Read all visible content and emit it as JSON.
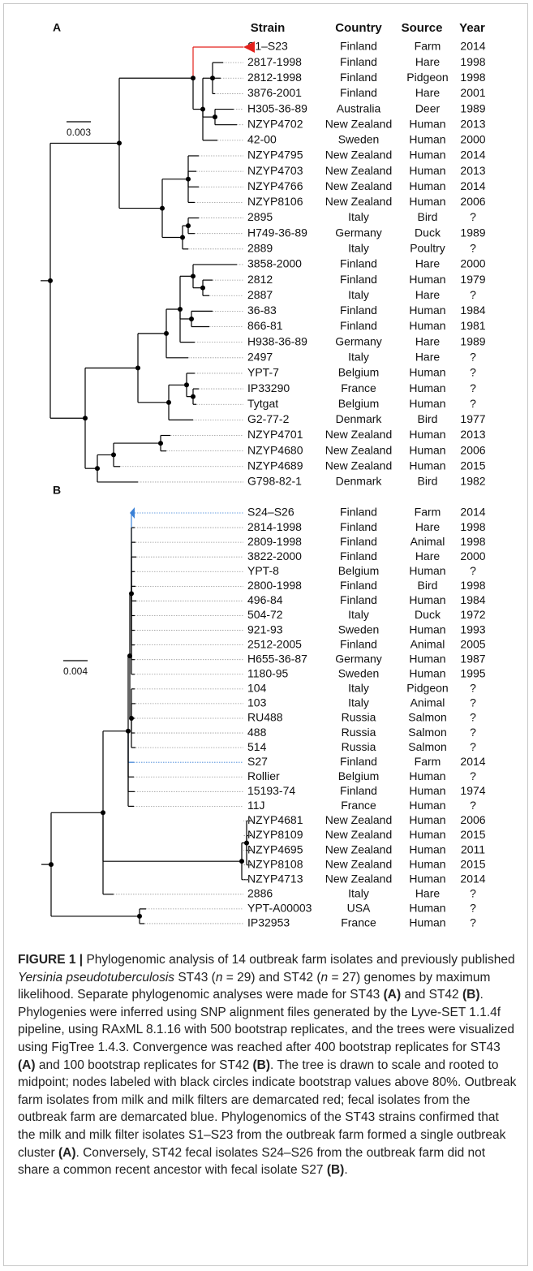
{
  "panels": [
    {
      "label": "A",
      "scale": "0.003",
      "headers": [
        "Strain",
        "Country",
        "Source",
        "Year"
      ],
      "rows": [
        {
          "strain": "S1–S23",
          "country": "Finland",
          "source": "Farm",
          "year": "2014",
          "color": "#e3211c"
        },
        {
          "strain": "2817-1998",
          "country": "Finland",
          "source": "Hare",
          "year": "1998"
        },
        {
          "strain": "2812-1998",
          "country": "Finland",
          "source": "Pidgeon",
          "year": "1998"
        },
        {
          "strain": "3876-2001",
          "country": "Finland",
          "source": "Hare",
          "year": "2001"
        },
        {
          "strain": "H305-36-89",
          "country": "Australia",
          "source": "Deer",
          "year": "1989"
        },
        {
          "strain": "NZYP4702",
          "country": "New Zealand",
          "source": "Human",
          "year": "2013"
        },
        {
          "strain": "42-00",
          "country": "Sweden",
          "source": "Human",
          "year": "2000"
        },
        {
          "strain": "NZYP4795",
          "country": "New Zealand",
          "source": "Human",
          "year": "2014"
        },
        {
          "strain": "NZYP4703",
          "country": "New Zealand",
          "source": "Human",
          "year": "2013"
        },
        {
          "strain": "NZYP4766",
          "country": "New Zealand",
          "source": "Human",
          "year": "2014"
        },
        {
          "strain": "NZYP8106",
          "country": "New Zealand",
          "source": "Human",
          "year": "2006"
        },
        {
          "strain": "2895",
          "country": "Italy",
          "source": "Bird",
          "year": "?"
        },
        {
          "strain": "H749-36-89",
          "country": "Germany",
          "source": "Duck",
          "year": "1989"
        },
        {
          "strain": "2889",
          "country": "Italy",
          "source": "Poultry",
          "year": "?"
        },
        {
          "strain": "3858-2000",
          "country": "Finland",
          "source": "Hare",
          "year": "2000"
        },
        {
          "strain": "2812",
          "country": "Finland",
          "source": "Human",
          "year": "1979"
        },
        {
          "strain": "2887",
          "country": "Italy",
          "source": "Hare",
          "year": "?"
        },
        {
          "strain": "36-83",
          "country": "Finland",
          "source": "Human",
          "year": "1984"
        },
        {
          "strain": "866-81",
          "country": "Finland",
          "source": "Human",
          "year": "1981"
        },
        {
          "strain": "H938-36-89",
          "country": "Germany",
          "source": "Hare",
          "year": "1989"
        },
        {
          "strain": "2497",
          "country": "Italy",
          "source": "Hare",
          "year": "?"
        },
        {
          "strain": "YPT-7",
          "country": "Belgium",
          "source": "Human",
          "year": "?"
        },
        {
          "strain": "IP33290",
          "country": "France",
          "source": "Human",
          "year": "?"
        },
        {
          "strain": "Tytgat",
          "country": "Belgium",
          "source": "Human",
          "year": "?"
        },
        {
          "strain": "G2-77-2",
          "country": "Denmark",
          "source": "Bird",
          "year": "1977"
        },
        {
          "strain": "NZYP4701",
          "country": "New Zealand",
          "source": "Human",
          "year": "2013"
        },
        {
          "strain": "NZYP4680",
          "country": "New Zealand",
          "source": "Human",
          "year": "2006"
        },
        {
          "strain": "NZYP4689",
          "country": "New Zealand",
          "source": "Human",
          "year": "2015"
        },
        {
          "strain": "G798-82-1",
          "country": "Denmark",
          "source": "Bird",
          "year": "1982"
        }
      ]
    },
    {
      "label": "B",
      "scale": "0.004",
      "rows": [
        {
          "strain": "S24–S26",
          "country": "Finland",
          "source": "Farm",
          "year": "2014",
          "color": "#3a80d6"
        },
        {
          "strain": "2814-1998",
          "country": "Finland",
          "source": "Hare",
          "year": "1998"
        },
        {
          "strain": "2809-1998",
          "country": "Finland",
          "source": "Animal",
          "year": "1998"
        },
        {
          "strain": "3822-2000",
          "country": "Finland",
          "source": "Hare",
          "year": "2000"
        },
        {
          "strain": "YPT-8",
          "country": "Belgium",
          "source": "Human",
          "year": "?"
        },
        {
          "strain": "2800-1998",
          "country": "Finland",
          "source": "Bird",
          "year": "1998"
        },
        {
          "strain": "496-84",
          "country": "Finland",
          "source": "Human",
          "year": "1984"
        },
        {
          "strain": "504-72",
          "country": "Italy",
          "source": "Duck",
          "year": "1972"
        },
        {
          "strain": "921-93",
          "country": "Sweden",
          "source": "Human",
          "year": "1993"
        },
        {
          "strain": "2512-2005",
          "country": "Finland",
          "source": "Animal",
          "year": "2005"
        },
        {
          "strain": "H655-36-87",
          "country": "Germany",
          "source": "Human",
          "year": "1987"
        },
        {
          "strain": "1180-95",
          "country": "Sweden",
          "source": "Human",
          "year": "1995"
        },
        {
          "strain": "104",
          "country": "Italy",
          "source": "Pidgeon",
          "year": "?"
        },
        {
          "strain": "103",
          "country": "Italy",
          "source": "Animal",
          "year": "?"
        },
        {
          "strain": "RU488",
          "country": "Russia",
          "source": "Salmon",
          "year": "?"
        },
        {
          "strain": "488",
          "country": "Russia",
          "source": "Salmon",
          "year": "?"
        },
        {
          "strain": "514",
          "country": "Russia",
          "source": "Salmon",
          "year": "?"
        },
        {
          "strain": "S27",
          "country": "Finland",
          "source": "Farm",
          "year": "2014",
          "color": "#3a80d6"
        },
        {
          "strain": "Rollier",
          "country": "Belgium",
          "source": "Human",
          "year": "?"
        },
        {
          "strain": "15193-74",
          "country": "Finland",
          "source": "Human",
          "year": "1974"
        },
        {
          "strain": "11J",
          "country": "France",
          "source": "Human",
          "year": "?"
        },
        {
          "strain": "NZYP4681",
          "country": "New Zealand",
          "source": "Human",
          "year": "2006"
        },
        {
          "strain": "NZYP8109",
          "country": "New Zealand",
          "source": "Human",
          "year": "2015"
        },
        {
          "strain": "NZYP4695",
          "country": "New Zealand",
          "source": "Human",
          "year": "2011"
        },
        {
          "strain": "NZYP8108",
          "country": "New Zealand",
          "source": "Human",
          "year": "2015"
        },
        {
          "strain": "NZYP4713",
          "country": "New Zealand",
          "source": "Human",
          "year": "2014"
        },
        {
          "strain": "2886",
          "country": "Italy",
          "source": "Hare",
          "year": "?"
        },
        {
          "strain": "YPT-A00003",
          "country": "USA",
          "source": "Human",
          "year": "?"
        },
        {
          "strain": "IP32953",
          "country": "France",
          "source": "Human",
          "year": "?"
        }
      ]
    }
  ],
  "caption": [
    {
      "text": "FIGURE 1 |",
      "style": "bold"
    },
    {
      "text": " Phylogenomic analysis of 14 outbreak farm isolates and previously published "
    },
    {
      "text": "Yersinia pseudotuberculosis",
      "style": "italic"
    },
    {
      "text": " ST43 ("
    },
    {
      "text": "n",
      "style": "italic"
    },
    {
      "text": " = 29) and ST42 ("
    },
    {
      "text": "n",
      "style": "italic"
    },
    {
      "text": " = 27) genomes by maximum likelihood. Separate phylogenomic analyses were made for ST43 "
    },
    {
      "text": "(A)",
      "style": "bold"
    },
    {
      "text": " and ST42 "
    },
    {
      "text": "(B)",
      "style": "bold"
    },
    {
      "text": ". Phylogenies were inferred using SNP alignment files generated by the Lyve-SET 1.1.4f pipeline, using RAxML 8.1.16 with 500 bootstrap replicates, and the trees were visualized using FigTree 1.4.3. Convergence was reached after 400 bootstrap replicates for ST43 "
    },
    {
      "text": "(A)",
      "style": "bold"
    },
    {
      "text": " and 100 bootstrap replicates for ST42 "
    },
    {
      "text": "(B)",
      "style": "bold"
    },
    {
      "text": ". The tree is drawn to scale and rooted to midpoint; nodes labeled with black circles indicate bootstrap values above 80%. Outbreak farm isolates from milk and milk filters are demarcated red; fecal isolates from the outbreak farm are demarcated blue. Phylogenomics of the ST43 strains confirmed that the milk and milk filter isolates S1–S23 from the outbreak farm formed a single outbreak cluster "
    },
    {
      "text": "(A)",
      "style": "bold"
    },
    {
      "text": ". Conversely, ST42 fecal isolates S24–S26 from the outbreak farm did not share a common recent ancestor with fecal isolate S27 "
    },
    {
      "text": "(B)",
      "style": "bold"
    },
    {
      "text": "."
    }
  ]
}
